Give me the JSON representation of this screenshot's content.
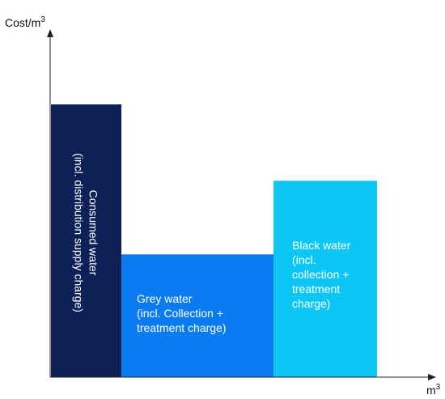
{
  "chart_data": {
    "type": "bar",
    "ylabel": "Cost/m",
    "ylabel_sup": "3",
    "xlabel": "m",
    "xlabel_sup": "3",
    "grid": false,
    "series": [
      {
        "label_lines": [
          "Consumed water",
          "(incl. distribution supply charge)"
        ],
        "width": 1.0,
        "value": 1.0,
        "color": "#0d2157",
        "label_orientation": "rotated"
      },
      {
        "label_lines": [
          "Grey water",
          "(incl. Collection +",
          "treatment charge)"
        ],
        "width": 2.2,
        "value": 0.45,
        "color": "#0a7bf0",
        "label_orientation": "horizontal"
      },
      {
        "label_lines": [
          "Black water",
          "(incl.",
          "collection +",
          "treatment",
          "charge)"
        ],
        "width": 1.5,
        "value": 0.72,
        "color": "#0cc6f5",
        "label_orientation": "horizontal"
      }
    ]
  }
}
